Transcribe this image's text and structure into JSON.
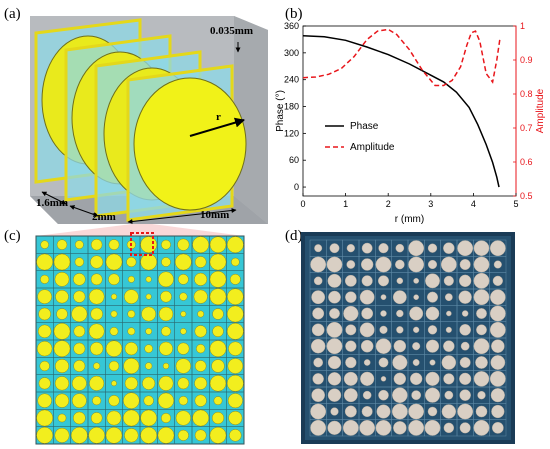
{
  "panels": {
    "a": {
      "label": "(a)",
      "dims": {
        "thickness": "0.035mm",
        "radius": "r",
        "substrate": "1.6mm",
        "spacing": "2mm",
        "size": "10mm"
      }
    },
    "b": {
      "label": "(b)",
      "chart_data": {
        "type": "line",
        "xlabel": "r (mm)",
        "ylabel_left": "Phase (°)",
        "ylabel_right": "Amplitude",
        "xlim": [
          0,
          5
        ],
        "ylim_left": [
          -20,
          360
        ],
        "ylim_right": [
          0.5,
          1.0
        ],
        "xticks": [
          "0",
          "1",
          "2",
          "3",
          "4",
          "5"
        ],
        "yticks_left": [
          "0",
          "60",
          "120",
          "180",
          "240",
          "300",
          "360"
        ],
        "yticks_right": [
          "0.5",
          "0.6",
          "0.7",
          "0.8",
          "0.9",
          "1"
        ],
        "legend_position": "center",
        "colors": {
          "phase": "#000000",
          "amplitude": "#e8161b"
        },
        "series": [
          {
            "name": "Phase",
            "axis": "left",
            "style": "solid",
            "x": [
              0,
              0.5,
              1.0,
              1.5,
              2.0,
              2.5,
              3.0,
              3.3,
              3.6,
              3.9,
              4.1,
              4.3,
              4.45,
              4.55,
              4.6
            ],
            "y": [
              338,
              336,
              328,
              313,
              296,
              275,
              250,
              235,
              212,
              178,
              140,
              95,
              55,
              22,
              0
            ]
          },
          {
            "name": "Amplitude",
            "axis": "right",
            "style": "dashed",
            "x": [
              0,
              0.3,
              0.6,
              0.9,
              1.2,
              1.5,
              1.75,
              2.0,
              2.2,
              2.5,
              2.8,
              3.1,
              3.3,
              3.5,
              3.7,
              3.85,
              3.95,
              4.05,
              4.15,
              4.3,
              4.45,
              4.55,
              4.62
            ],
            "y": [
              0.848,
              0.85,
              0.858,
              0.875,
              0.91,
              0.96,
              0.985,
              0.99,
              0.975,
              0.93,
              0.87,
              0.825,
              0.825,
              0.84,
              0.88,
              0.945,
              0.98,
              0.985,
              0.955,
              0.86,
              0.835,
              0.9,
              0.96
            ]
          }
        ]
      }
    },
    "c": {
      "label": "(c)",
      "rows": 12,
      "cols": 12
    },
    "d": {
      "label": "(d)"
    }
  }
}
